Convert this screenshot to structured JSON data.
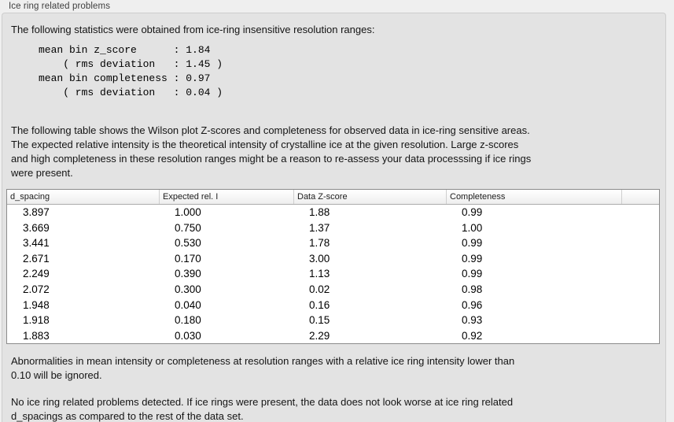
{
  "panel": {
    "title": "Ice ring related problems",
    "intro": "The following statistics were obtained from ice-ring insensitive resolution ranges:"
  },
  "stats": {
    "lines": [
      "mean bin z_score      : 1.84",
      "    ( rms deviation   : 1.45 )",
      "mean bin completeness : 0.97",
      "    ( rms deviation   : 0.04 )"
    ],
    "mean_bin_z_score": "1.84",
    "z_score_rms_deviation": "1.45",
    "mean_bin_completeness": "0.97",
    "completeness_rms_deviation": "0.04"
  },
  "description": {
    "lines": [
      "The following table shows the Wilson plot Z-scores and completeness for observed data in ice-ring sensitive areas.",
      "The expected relative intensity is the theoretical intensity of crystalline ice at the given resolution. Large z-scores",
      "and high completeness in these resolution ranges might be a reason to re-assess your data processsing if ice rings",
      "were present."
    ]
  },
  "table": {
    "columns": [
      "d_spacing",
      "Expected rel. I",
      "Data Z-score",
      "Completeness"
    ],
    "rows": [
      [
        "3.897",
        "1.000",
        "1.88",
        "0.99"
      ],
      [
        "3.669",
        "0.750",
        "1.37",
        "1.00"
      ],
      [
        "3.441",
        "0.530",
        "1.78",
        "0.99"
      ],
      [
        "2.671",
        "0.170",
        "3.00",
        "0.99"
      ],
      [
        "2.249",
        "0.390",
        "1.13",
        "0.99"
      ],
      [
        "2.072",
        "0.300",
        "0.02",
        "0.98"
      ],
      [
        "1.948",
        "0.040",
        "0.16",
        "0.96"
      ],
      [
        "1.918",
        "0.180",
        "0.15",
        "0.93"
      ],
      [
        "1.883",
        "0.030",
        "2.29",
        "0.92"
      ]
    ]
  },
  "notes": {
    "ignore": {
      "lines": [
        "Abnormalities in mean intensity or completeness at resolution ranges with a relative ice ring intensity lower than",
        "0.10 will be ignored."
      ]
    },
    "conclusion": {
      "lines": [
        "No ice ring related problems detected. If ice rings were present, the data does not look worse at ice ring related",
        "d_spacings as compared to the rest of the data set."
      ]
    }
  },
  "colors": {
    "page_bg": "#efefef",
    "groupbox_bg": "#e3e3e3",
    "groupbox_border": "#cdcdcd",
    "table_bg": "#ffffff",
    "table_border": "#8b8b8b",
    "header_divider": "#cfcfcf",
    "text": "#141414"
  }
}
